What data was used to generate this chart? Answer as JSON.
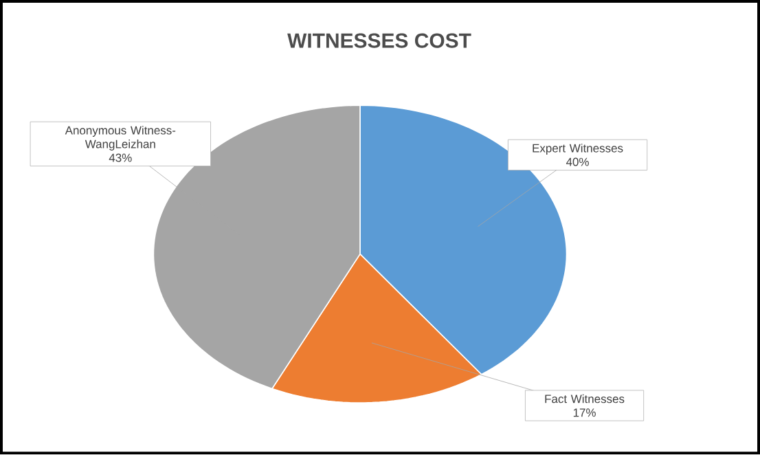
{
  "chart_data": {
    "type": "pie",
    "title": "WITNESSES COST",
    "categories": [
      "Expert Witnesses",
      "Fact Witnesses",
      "Anonymous Witness-WangLeizhan"
    ],
    "values": [
      40,
      17,
      43
    ],
    "value_labels": [
      "40%",
      "17%",
      "43%"
    ],
    "colors": [
      "#5b9bd5",
      "#ed7d31",
      "#a5a5a5"
    ]
  }
}
